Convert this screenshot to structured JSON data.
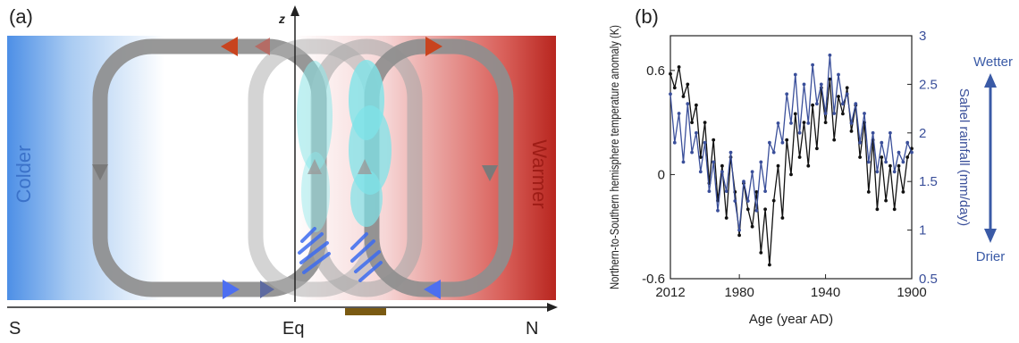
{
  "panel_a": {
    "label": "(a)",
    "z_label": "z",
    "colder_label": "Colder",
    "warmer_label": "Warmer",
    "axis_labels": {
      "south": "S",
      "equator": "Eq",
      "north": "N"
    },
    "colors": {
      "cold": "#4d8fe6",
      "warm": "#c0392b",
      "cell": "#8c8c8c",
      "cloud": "#7fe3e8",
      "rain": "#3d6cf0",
      "arrow_warm": "#c8441f",
      "arrow_cold": "#4d6ff0",
      "marker": "#7a5a12"
    }
  },
  "panel_b": {
    "label": "(b)",
    "wetter_label": "Wetter",
    "drier_label": "Drier",
    "chart_data": {
      "type": "line",
      "xlabel": "Age (year AD)",
      "ylabel_left": "Northern-to-Southern hemisphere temperature anomaly (K)",
      "ylabel_right": "Sahel rainfall (mm/day)",
      "xlim": [
        2012,
        1900
      ],
      "ylim_left": [
        -0.6,
        0.8
      ],
      "ylim_right": [
        0.5,
        3.0
      ],
      "x_ticks": [
        "2012",
        "1980",
        "1940",
        "1900"
      ],
      "y_ticks_left": [
        "0.6",
        "0",
        "-0.6"
      ],
      "y_ticks_right": [
        "3",
        "2.5",
        "2",
        "1.5",
        "1",
        "0.5"
      ],
      "colors": {
        "temperature": "#111111",
        "rainfall": "#3a4f9a"
      },
      "series": [
        {
          "key": "temperature",
          "x": [
            2012,
            2010,
            2008,
            2006,
            2004,
            2002,
            2000,
            1998,
            1996,
            1994,
            1992,
            1990,
            1988,
            1986,
            1984,
            1982,
            1980,
            1978,
            1976,
            1974,
            1972,
            1970,
            1968,
            1966,
            1964,
            1962,
            1960,
            1958,
            1956,
            1954,
            1952,
            1950,
            1948,
            1946,
            1944,
            1942,
            1940,
            1938,
            1936,
            1934,
            1932,
            1930,
            1928,
            1926,
            1924,
            1922,
            1920,
            1918,
            1916,
            1914,
            1912,
            1910,
            1908,
            1906,
            1904,
            1902,
            1900
          ],
          "values": [
            0.58,
            0.5,
            0.62,
            0.45,
            0.52,
            0.3,
            0.4,
            0.1,
            0.3,
            -0.05,
            0.2,
            -0.15,
            0.05,
            -0.25,
            0.1,
            -0.1,
            -0.35,
            -0.05,
            -0.2,
            -0.3,
            -0.1,
            -0.45,
            -0.2,
            -0.52,
            -0.15,
            0.05,
            -0.25,
            0.2,
            0.0,
            0.35,
            0.1,
            0.3,
            0.05,
            0.4,
            0.15,
            0.5,
            0.3,
            0.55,
            0.2,
            0.45,
            0.35,
            0.5,
            0.25,
            0.4,
            0.1,
            0.3,
            -0.1,
            0.2,
            -0.2,
            0.1,
            -0.15,
            0.05,
            -0.2,
            0.05,
            -0.1,
            0.1,
            0.15
          ]
        },
        {
          "key": "rainfall",
          "x": [
            2012,
            2010,
            2008,
            2006,
            2004,
            2002,
            2000,
            1998,
            1996,
            1994,
            1992,
            1990,
            1988,
            1986,
            1984,
            1982,
            1980,
            1978,
            1976,
            1974,
            1972,
            1970,
            1968,
            1966,
            1964,
            1962,
            1960,
            1958,
            1956,
            1954,
            1952,
            1950,
            1948,
            1946,
            1944,
            1942,
            1940,
            1938,
            1936,
            1934,
            1932,
            1930,
            1928,
            1926,
            1924,
            1922,
            1920,
            1918,
            1916,
            1914,
            1912,
            1910,
            1908,
            1906,
            1904,
            1902,
            1900
          ],
          "values": [
            2.4,
            1.9,
            2.2,
            1.7,
            2.3,
            1.8,
            2.0,
            1.6,
            1.9,
            1.4,
            1.7,
            1.2,
            1.6,
            1.4,
            1.8,
            1.3,
            1.0,
            1.5,
            1.3,
            1.6,
            1.2,
            1.7,
            1.4,
            1.9,
            1.8,
            2.1,
            1.9,
            2.4,
            2.1,
            2.6,
            2.0,
            2.5,
            2.1,
            2.7,
            2.3,
            2.5,
            2.2,
            2.8,
            2.2,
            2.6,
            2.3,
            2.4,
            2.1,
            2.3,
            1.9,
            2.2,
            1.7,
            2.0,
            1.6,
            1.9,
            1.7,
            2.0,
            1.6,
            1.8,
            1.7,
            1.9,
            1.8
          ]
        }
      ]
    }
  }
}
